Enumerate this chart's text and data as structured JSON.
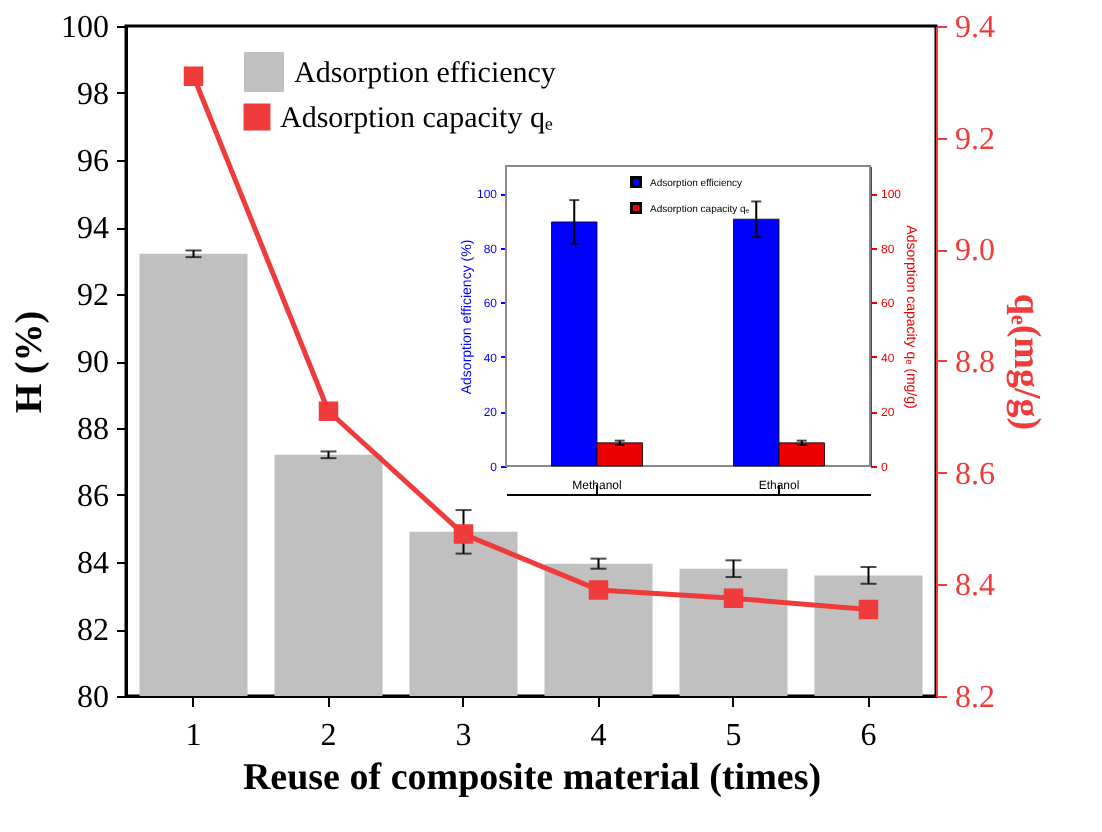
{
  "chart_data": [
    {
      "type": "bar",
      "categories": [
        "1",
        "2",
        "3",
        "4",
        "5",
        "6"
      ],
      "xlabel": "Reuse of composite material (times)",
      "ylabel": "H (%)",
      "y2label": "qₑ(mg/g)",
      "series": [
        {
          "name": "Adsorption efficiency",
          "type": "bar",
          "color": "#c0c0c0",
          "values": [
            93.2,
            87.2,
            84.9,
            83.95,
            83.8,
            83.6
          ],
          "errors": [
            0.1,
            0.1,
            0.65,
            0.15,
            0.25,
            0.25
          ]
        },
        {
          "name": "Adsorption capacity qₑ",
          "type": "line",
          "axis": "y2",
          "color": "#ef3b3b",
          "marker": "square",
          "values": [
            9.31,
            8.71,
            8.49,
            8.39,
            8.375,
            8.355
          ]
        }
      ],
      "ylim": [
        80,
        100
      ],
      "yticks": [
        80,
        82,
        84,
        86,
        88,
        90,
        92,
        94,
        96,
        98,
        100
      ],
      "y2lim": [
        8.2,
        9.4
      ],
      "y2ticks": [
        {
          "value": 8.2,
          "label": "8.2"
        },
        {
          "value": 8.4,
          "label": "8.4"
        },
        {
          "value": 8.6,
          "label": "8.6"
        },
        {
          "value": 8.8,
          "label": "8.8"
        },
        {
          "value": 9.0,
          "label": "9.0"
        },
        {
          "value": 9.2,
          "label": "9.2"
        },
        {
          "value": 9.4,
          "label": "9.4"
        }
      ],
      "legend": "top left"
    },
    {
      "type": "bar",
      "categories": [
        "Methanol",
        "Ethanol"
      ],
      "ylabel": "Adsorption efficiency (%)",
      "y2label": "Adsorption capacity qₑ (mg/g)",
      "series": [
        {
          "name": "Adsorption efficiency",
          "color": "#0000ff",
          "values": [
            89.5,
            90.5
          ],
          "errors": [
            8,
            6.5
          ]
        },
        {
          "name": "Adsorption capacity qₑ",
          "axis": "y2",
          "color": "#ee0000",
          "values": [
            8.5,
            8.5
          ],
          "errors": [
            0.8,
            0.8
          ]
        }
      ],
      "ylim": [
        0,
        110
      ],
      "yticks": [
        0,
        20,
        40,
        60,
        80,
        100
      ],
      "y2lim": [
        0,
        110
      ],
      "y2ticks": [
        0,
        20,
        40,
        60,
        80,
        100
      ],
      "legend": "top right"
    }
  ]
}
